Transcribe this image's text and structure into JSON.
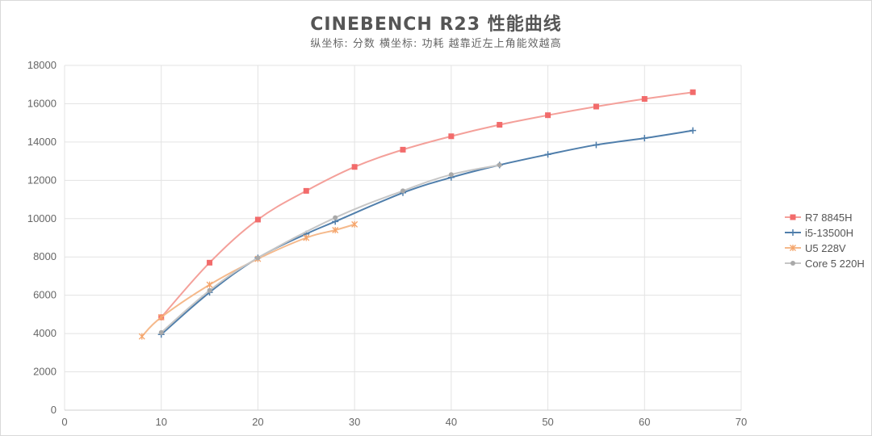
{
  "chart_data": {
    "type": "line",
    "title": "CINEBENCH R23 性能曲线",
    "subtitle": "纵坐标: 分数   横坐标: 功耗   越靠近左上角能效越高",
    "xlim": [
      0,
      70
    ],
    "ylim": [
      0,
      18000
    ],
    "x_ticks": [
      "0",
      "10",
      "20",
      "30",
      "40",
      "50",
      "60",
      "70"
    ],
    "y_ticks": [
      "0",
      "2000",
      "4000",
      "6000",
      "8000",
      "10000",
      "12000",
      "14000",
      "16000",
      "18000"
    ],
    "grid": true,
    "legend_position": "right",
    "series": [
      {
        "name": "R7 8845H",
        "color": "#f4a09a",
        "marker_color": "#f26b6b",
        "marker": "square",
        "x": [
          10,
          15,
          20,
          25,
          30,
          35,
          40,
          45,
          50,
          55,
          60,
          65
        ],
        "y": [
          4850,
          7700,
          9950,
          11450,
          12700,
          13600,
          14300,
          14900,
          15400,
          15850,
          16250,
          16600
        ]
      },
      {
        "name": "i5-13500H",
        "color": "#4f7eab",
        "marker_color": "#4f7eab",
        "marker": "plus",
        "x": [
          10,
          15,
          20,
          25,
          28,
          35,
          40,
          45,
          50,
          55,
          60,
          65
        ],
        "y": [
          3950,
          6150,
          7950,
          9200,
          9850,
          11350,
          12150,
          12800,
          13350,
          13850,
          14200,
          14600
        ]
      },
      {
        "name": "U5 228V",
        "color": "#f5b98b",
        "marker_color": "#f5a46a",
        "marker": "star",
        "x": [
          8,
          10,
          15,
          20,
          25,
          28,
          30
        ],
        "y": [
          3850,
          4850,
          6550,
          7900,
          9000,
          9400,
          9700
        ]
      },
      {
        "name": "Core 5 220H",
        "color": "#c6c6c6",
        "marker_color": "#a9a9a9",
        "marker": "circle",
        "x": [
          10,
          15,
          20,
          28,
          35,
          40,
          45
        ],
        "y": [
          4050,
          6250,
          7950,
          10050,
          11450,
          12300,
          12800
        ]
      }
    ]
  }
}
